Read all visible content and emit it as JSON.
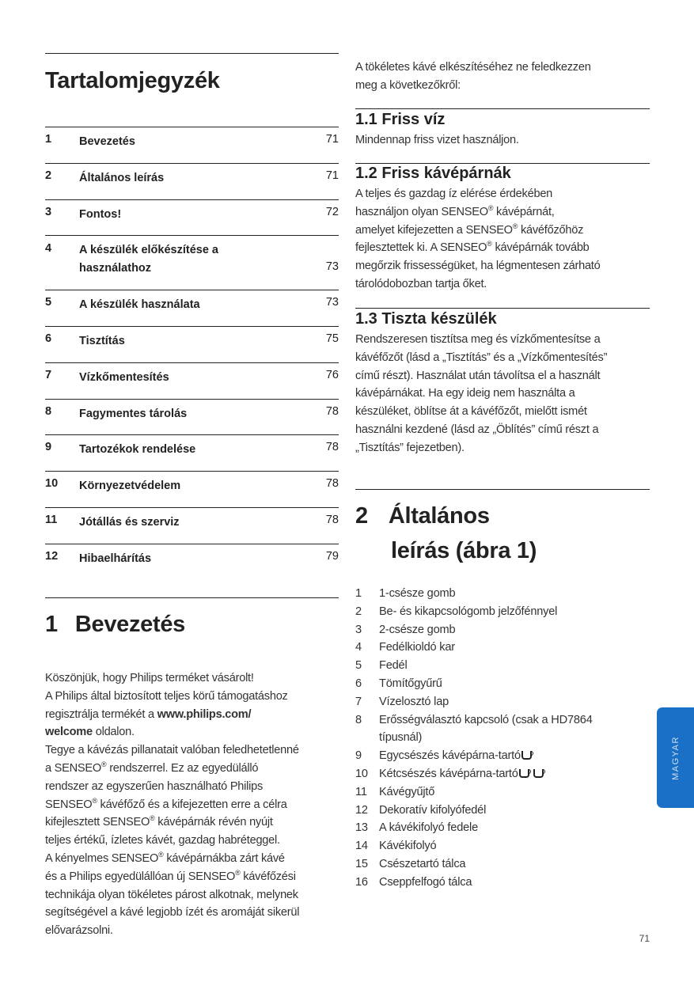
{
  "toc": {
    "title": "Tartalomjegyzék",
    "items": [
      {
        "num": "1",
        "label": "Bevezetés",
        "page": "71"
      },
      {
        "num": "2",
        "label": "Általános leírás",
        "page": "71"
      },
      {
        "num": "3",
        "label": "Fontos!",
        "page": "72"
      },
      {
        "num": "4",
        "label": "A készülék előkészítése a használathoz",
        "label_lines": [
          "A készülék előkészítése a",
          "használathoz"
        ],
        "page": "73"
      },
      {
        "num": "5",
        "label": "A készülék használata",
        "page": "73"
      },
      {
        "num": "6",
        "label": "Tisztítás",
        "page": "75"
      },
      {
        "num": "7",
        "label": "Vízkőmentesítés",
        "page": "76"
      },
      {
        "num": "8",
        "label": "Fagymentes tárolás",
        "page": "78"
      },
      {
        "num": "9",
        "label": "Tartozékok rendelése",
        "page": "78"
      },
      {
        "num": "10",
        "label": "Környezetvédelem",
        "page": "78"
      },
      {
        "num": "11",
        "label": "Jótállás és szerviz",
        "page": "78"
      },
      {
        "num": "12",
        "label": "Hibaelhárítás",
        "page": "79"
      }
    ]
  },
  "intro": {
    "heading_num": "1",
    "heading": "Bevezetés",
    "lines": [
      "Köszönjük, hogy Philips terméket vásárolt!",
      "A Philips által biztosított teljes körű támogatáshoz",
      [
        [
          "regisztrálja termékét a ",
          false
        ],
        [
          "www.philips.com/",
          true
        ]
      ],
      [
        [
          "welcome",
          true
        ],
        [
          " oldalon.",
          false
        ]
      ],
      "Tegye a kávézás pillanatait valóban feledhetetlenné",
      "a SENSEO® rendszerrel. Ez az egyedülálló",
      "rendszer az egyszerűen használható Philips",
      "SENSEO® kávéfőző és a kifejezetten erre a célra",
      "kifejlesztett SENSEO® kávépárnák révén nyújt",
      "teljes értékű, ízletes kávét, gazdag habréteggel.",
      "A kényelmes SENSEO® kávépárnákba zárt kávé",
      "és a Philips egyedülállóan új SENSEO® kávéfőzési",
      "technikája olyan tökéletes párost alkotnak, melynek",
      "segítségével a kávé legjobb ízét és aromáját sikerül",
      "elővarázsolni."
    ]
  },
  "right": {
    "lead_lines": [
      "A tökéletes kávé elkészítéséhez ne feledkezzen",
      "meg a következőkről:"
    ],
    "s11": {
      "title": "1.1  Friss víz",
      "lines": [
        "Mindennap friss vizet használjon."
      ]
    },
    "s12": {
      "title": "1.2  Friss kávépárnák",
      "lines": [
        "A teljes és gazdag íz elérése érdekében",
        "használjon olyan SENSEO® kávépárnát,",
        "amelyet kifejezetten a SENSEO® kávéfőzőhöz",
        "fejlesztettek ki. A SENSEO® kávépárnák tovább",
        "megőrzik frissességüket, ha légmentesen zárható",
        "tárolódobozban tartja őket."
      ]
    },
    "s13": {
      "title": "1.3  Tiszta készülék",
      "lines": [
        "Rendszeresen tisztítsa meg és vízkőmentesítse a",
        "kávéfőzőt (lásd a „Tisztítás” és a „Vízkőmentesítés”",
        "című részt). Használat után távolítsa el a használt",
        "kávépárnákat. Ha egy ideig nem használta a",
        "készüléket, öblítse át a kávéfőzőt, mielőtt ismét",
        "használni kezdené (lásd az „Öblítés” című részt a",
        "„Tisztítás” fejezetben)."
      ]
    },
    "s2": {
      "num": "2",
      "title_line1": "Általános",
      "title_line2": "leírás (ábra 1)"
    },
    "parts": [
      {
        "n": "1",
        "t": "1-csésze gomb"
      },
      {
        "n": "2",
        "t": "Be- és kikapcsológomb jelzőfénnyel"
      },
      {
        "n": "3",
        "t": "2-csésze gomb"
      },
      {
        "n": "4",
        "t": "Fedélkioldó kar"
      },
      {
        "n": "5",
        "t": "Fedél"
      },
      {
        "n": "6",
        "t": "Tömítőgyűrű"
      },
      {
        "n": "7",
        "t": "Vízelosztó lap"
      },
      {
        "n": "8",
        "t": "Erősségválasztó kapcsoló (csak a HD7864",
        "t2": "típusnál)"
      },
      {
        "n": "9",
        "t": "Egycsészés kávépárna-tartó",
        "cups": 1
      },
      {
        "n": "10",
        "t": "Kétcsészés kávépárna-tartó",
        "cups": 2
      },
      {
        "n": "11",
        "t": "Kávégyűjtő"
      },
      {
        "n": "12",
        "t": "Dekoratív kifolyófedél"
      },
      {
        "n": "13",
        "t": "A kávékifolyó fedele"
      },
      {
        "n": "14",
        "t": "Kávékifolyó"
      },
      {
        "n": "15",
        "t": "Csészetartó tálca"
      },
      {
        "n": "16",
        "t": "Cseppfelfogó tálca"
      }
    ]
  },
  "tab": {
    "label": "MAGYAR",
    "color": "#1a70c6"
  },
  "page_number": "71"
}
